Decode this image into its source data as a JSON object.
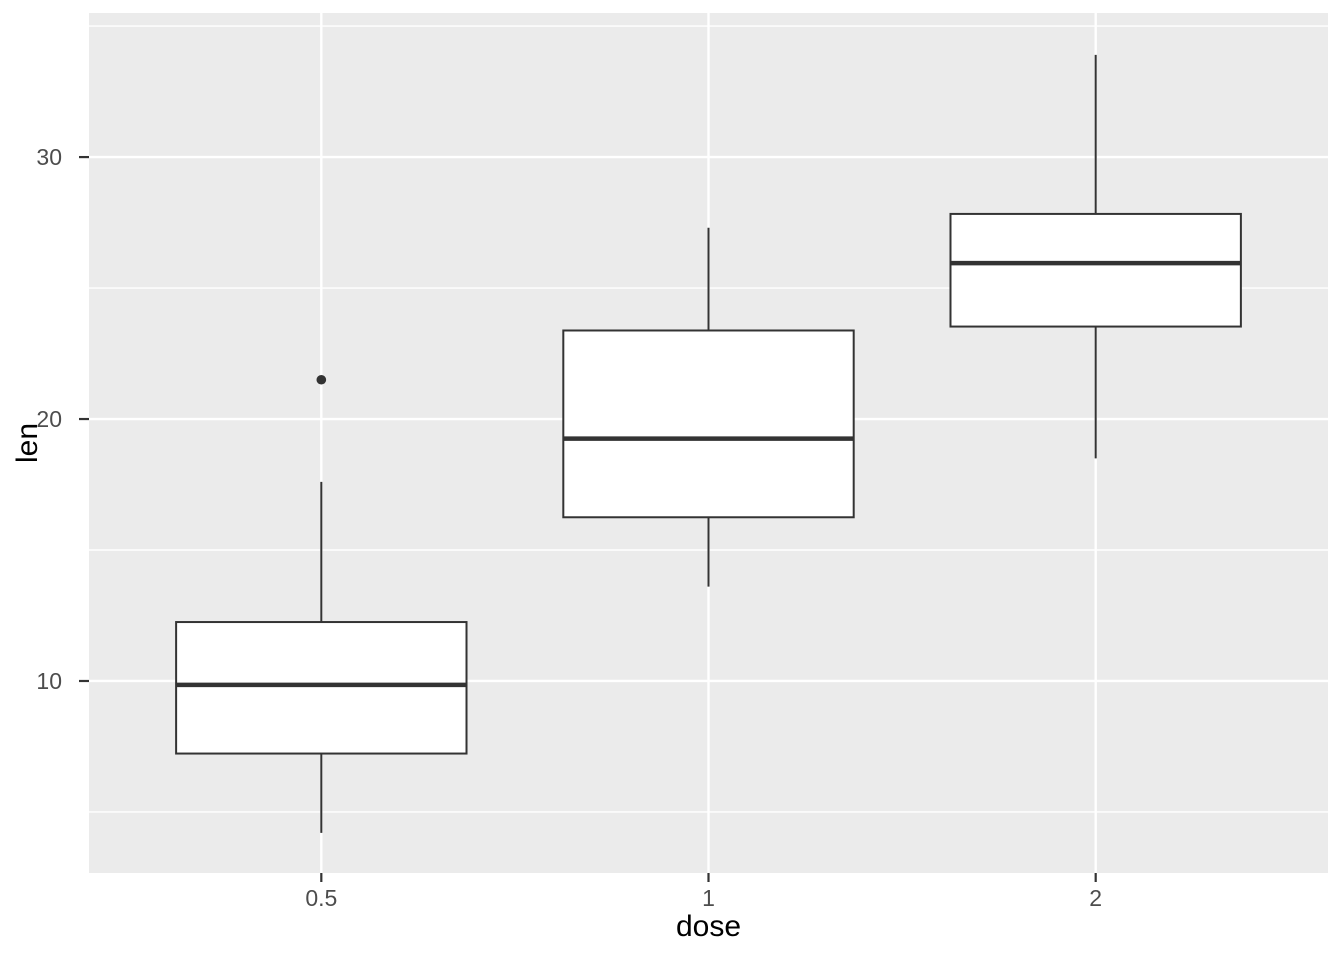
{
  "chart_data": {
    "type": "boxplot",
    "title": "",
    "xlabel": "dose",
    "ylabel": "len",
    "categories": [
      "0.5",
      "1",
      "2"
    ],
    "x_tick_labels": [
      "0.5",
      "1",
      "2"
    ],
    "y_major_ticks": [
      10,
      20,
      30
    ],
    "y_tick_labels": [
      "10",
      "20",
      "30"
    ],
    "y_minor_ticks": [
      5,
      15,
      25,
      35
    ],
    "ylim": [
      2.67,
      35.5
    ],
    "grid": "major+minor",
    "legend_position": "none",
    "series": [
      {
        "category": "0.5",
        "whisker_low": 4.2,
        "q1": 7.23,
        "median": 9.85,
        "q3": 12.25,
        "whisker_high": 17.6,
        "outliers": [
          21.5
        ]
      },
      {
        "category": "1",
        "whisker_low": 13.6,
        "q1": 16.25,
        "median": 19.25,
        "q3": 23.38,
        "whisker_high": 27.3,
        "outliers": []
      },
      {
        "category": "2",
        "whisker_low": 18.5,
        "q1": 23.53,
        "median": 25.95,
        "q3": 27.83,
        "whisker_high": 33.9,
        "outliers": []
      }
    ],
    "style": {
      "figure_background": "#FFFFFF",
      "panel_background": "#EBEBEB",
      "gridline_color": "#FFFFFF",
      "box_fill": "#FFFFFF",
      "box_stroke": "#333333",
      "median_stroke": "#333333",
      "whisker_stroke": "#333333",
      "outlier_color": "#333333",
      "tick_mark_color": "#333333",
      "tick_label_color": "#4D4D4D",
      "axis_title_color": "#000000"
    }
  }
}
